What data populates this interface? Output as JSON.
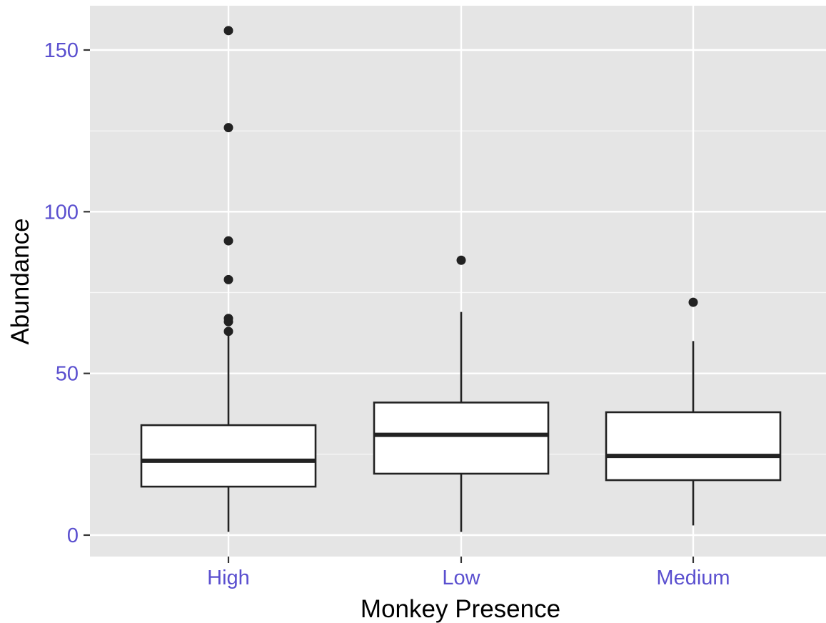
{
  "colors": {
    "panel_background": "#e5e5e5",
    "grid_line": "#ffffff",
    "tick_label": "#5a4fcf",
    "box_fill": "#ffffff",
    "box_stroke": "#222222",
    "outlier": "#222222",
    "axis_title": "#000000"
  },
  "chart_data": {
    "type": "boxplot",
    "xlabel": "Monkey Presence",
    "ylabel": "Abundance",
    "categories": [
      "High",
      "Low",
      "Medium"
    ],
    "y_ticks": [
      0,
      50,
      100,
      150
    ],
    "y_tick_labels": [
      "0",
      "50",
      "100",
      "150"
    ],
    "ylim": [
      -7,
      164
    ],
    "grid": true,
    "legend": "none",
    "boxes": [
      {
        "category": "High",
        "whisker_low": 1,
        "q1": 15,
        "median": 23,
        "q3": 34,
        "whisker_high": 63,
        "outliers": [
          63,
          66,
          67,
          79,
          91,
          126,
          156
        ]
      },
      {
        "category": "Low",
        "whisker_low": 1,
        "q1": 19,
        "median": 31,
        "q3": 41,
        "whisker_high": 69,
        "outliers": [
          85
        ]
      },
      {
        "category": "Medium",
        "whisker_low": 3,
        "q1": 17,
        "median": 24.5,
        "q3": 38,
        "whisker_high": 60,
        "outliers": [
          72
        ]
      }
    ]
  }
}
